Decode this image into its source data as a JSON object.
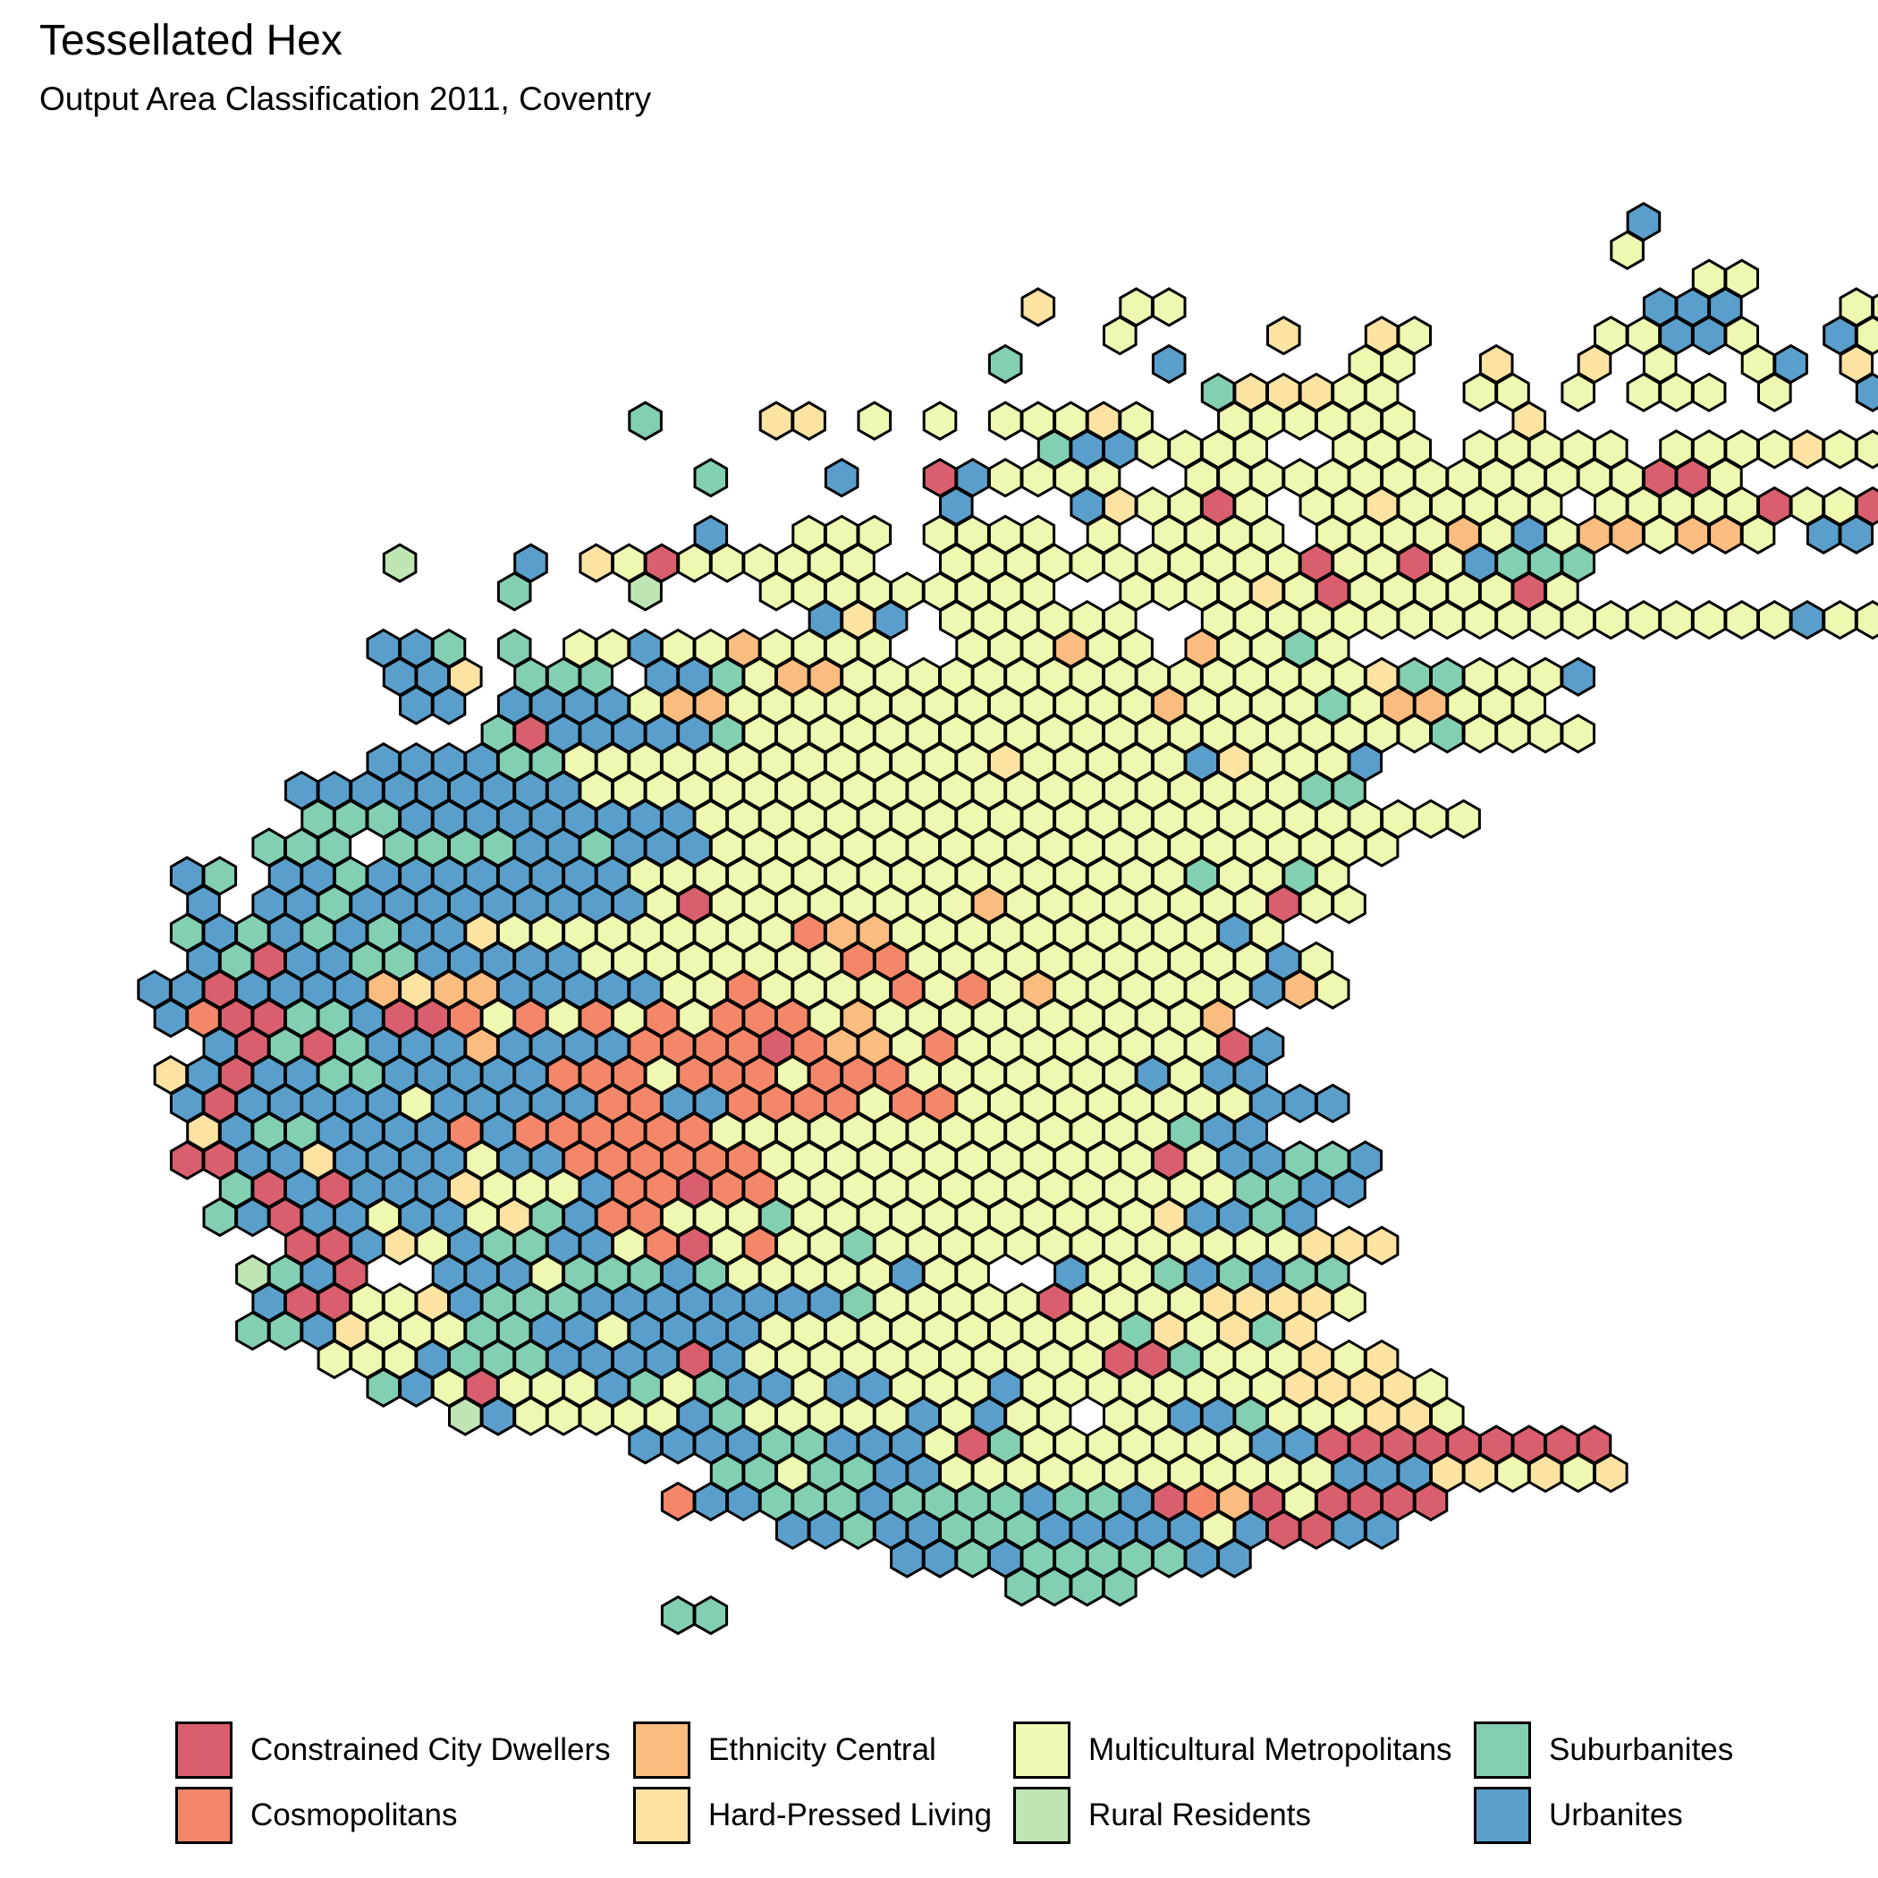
{
  "title": "Tessellated Hex",
  "subtitle": "Output Area Classification 2011, Coventry",
  "categories": [
    {
      "code": "C",
      "name": "Constrained City Dwellers",
      "color": "#d95f6e"
    },
    {
      "code": "O",
      "name": "Cosmopolitans",
      "color": "#f4876a"
    },
    {
      "code": "E",
      "name": "Ethnicity Central",
      "color": "#fbbc7f"
    },
    {
      "code": "H",
      "name": "Hard-Pressed Living",
      "color": "#fde3a2"
    },
    {
      "code": "M",
      "name": "Multicultural Metropolitans",
      "color": "#eef8b0"
    },
    {
      "code": "R",
      "name": "Rural Residents",
      "color": "#bfe5b5"
    },
    {
      "code": "S",
      "name": "Suburbanites",
      "color": "#82cfb1"
    },
    {
      "code": "U",
      "name": "Urbanites",
      "color": "#5a9fcb"
    }
  ],
  "hex_rows": [
    {
      "row": 0,
      "cells": "u",
      "start": 46
    },
    {
      "row": 1,
      "cells": "m",
      "start": 46
    },
    {
      "row": 2,
      "cells": "mm.....u",
      "start": 48
    },
    {
      "row": 3,
      "cells": "h..mm..............uuu...mmumm...h",
      "start": 28
    },
    {
      "row": 4,
      "cells": "m....h..hm.....mmuum..um",
      "start": 30
    },
    {
      "row": 5,
      "cells": "s....u.....mm..h..h.m..mu.h",
      "start": 27
    },
    {
      "row": 6,
      "cells": "shhhmm..mm.m.mmm.m..umm.h.u.m",
      "start": 33
    },
    {
      "row": 7,
      "cells": "s...hh.m.m.mmmhm..mmmmmm...h",
      "start": 16
    },
    {
      "row": 8,
      "cells": "suummmm..mmm.mmmmm.mmmmhmmmmm.h",
      "start": 28
    },
    {
      "row": 9,
      "cells": "s...u..cummmm..mmmmmmmmmmmmmmccm",
      "start": 18
    },
    {
      "row": 10,
      "cells": "u...uhmmcm.mmhmmmmm.mmmmmcmmcmmm",
      "start": 25
    },
    {
      "row": 11,
      "cells": "u..mmm.mmmm.m.mmmm.mmmmemumeemeem.uu",
      "start": 18
    },
    {
      "row": 12,
      "cells": "r...u.hmcmmmmmm..mmmmmmmmmmmcmmcmusss",
      "start": 8
    },
    {
      "row": 13,
      "cells": "s...r...mmmmmmmmm..mmmmhmcmmmmmcm",
      "start": 12
    },
    {
      "row": 14,
      "cells": "uhu.mmmmmm..mmmmmmmmmmmmmmmmmmumm",
      "start": 21
    },
    {
      "row": 15,
      "cells": "uus.s.mmummemmmm..mmmemm.emmsm",
      "start": 8
    },
    {
      "row": 16,
      "cells": "uuh.sss.uusmeemmmmmmmmmmmmmmmmhssmmmu",
      "start": 8
    },
    {
      "row": 17,
      "cells": "uu.uuuumeemmmmmmmmmmmmmemmmmsmeemmm",
      "start": 9
    },
    {
      "row": 18,
      "cells": "scuuuuusmmmmmmmmmmmmmmmmmmmmmsmmmm",
      "start": 11
    },
    {
      "row": 19,
      "cells": "uuuussmmmmmmmmmmmmmhmmmmmuhmmmu",
      "start": 8
    },
    {
      "row": 20,
      "cells": "uuuuuuuuummmmmmmmmmmmmmmmmmmmmmss",
      "start": 5
    },
    {
      "row": 21,
      "cells": "sssuuuuuuuuummmmmmmmmmmmmmmmmmmmmmmm",
      "start": 6
    },
    {
      "row": 22,
      "cells": "sss.ssssuusuuummmmmmmmmmmmmmmmmmmmm",
      "start": 4
    },
    {
      "row": 23,
      "cells": "us.uusuuuuuuuummmmmmmmmmmmmmmmmsmmsm",
      "start": 2
    },
    {
      "row": 24,
      "cells": "u.uusuuuuuuuuumcmmmmmmmmemmmmmmmmcmm",
      "start": 2
    },
    {
      "row": 25,
      "cells": "susususuuhmmmmmmmmmoeemmmmmmmmmmum",
      "start": 2
    },
    {
      "row": 26,
      "cells": "uscuussuuuuummmmmmmmoommmmmmmmmmmum",
      "start": 2
    },
    {
      "row": 27,
      "cells": "uucuuuueheeuuuuummommmmomomemmmmmmuem",
      "start": 1
    },
    {
      "row": 28,
      "cells": "uoccssuccomomomomooomemmmmmmmmmme",
      "start": 1
    },
    {
      "row": 29,
      "cells": "ucscsuuueuuuuoooocoeemommmmmmmmcu",
      "start": 3
    },
    {
      "row": 30,
      "cells": "hucuussuuuuuooomooomooommmmmmmumuu",
      "start": 1
    },
    {
      "row": 31,
      "cells": "ucuuuuumuuuuuoouuoooomoommmmmmmmmuuu",
      "start": 2
    },
    {
      "row": 32,
      "cells": "hussuuuuouoooooommmmmmmmmmmmmmsuu",
      "start": 2
    },
    {
      "row": 33,
      "cells": "ccuuhuuuumuuoooooommmmmmmmmmmmcmuussu",
      "start": 2
    },
    {
      "row": 34,
      "cells": "scucuuuhmmmuoocoommmmmmmmmmmmmmssuu",
      "start": 3
    },
    {
      "row": 35,
      "cells": "sucuumuumhsuoommmsmmmmmmmmmmmhuusu",
      "start": 3
    },
    {
      "row": 36,
      "cells": "ccuhmussuumocmommsmmmmmmmmmmmmmhhh",
      "start": 5
    },
    {
      "row": 37,
      "cells": "rsuc..uuumsssusmmmmmumm..ummsususs",
      "start": 4
    },
    {
      "row": 38,
      "cells": "uccmmhusssuuuuuuuusmmmmmcmmmmhhhhm",
      "start": 4
    },
    {
      "row": 39,
      "cells": "ssuhmmmssuumuuuummmmmmmmmmmshmhsh",
      "start": 4
    },
    {
      "row": 40,
      "cells": "mmmusssuuuucummmmmmmmmmmccsmmmhmh",
      "start": 6
    },
    {
      "row": 41,
      "cells": "sumcmmmusmsuumuummmummmmmmmmhhhhm",
      "start": 8
    },
    {
      "row": 42,
      "cells": "rummmmmusmmmmmumumm.mmuusmmmhhm",
      "start": 10
    },
    {
      "row": 43,
      "cells": "uuuussuuumcsmmmmmmmuuccccccccc",
      "start": 16
    },
    {
      "row": 44,
      "cells": "ssmssuummmmmmmmmmmmuuuhhmhmh",
      "start": 18
    },
    {
      "row": 45,
      "cells": "ouusssussssussucoecmcccc",
      "start": 17
    },
    {
      "row": 46,
      "cells": "uusuusssuuuuumuccuu",
      "start": 20
    },
    {
      "row": 47,
      "cells": "uususssssuu",
      "start": 24
    },
    {
      "row": 48,
      "cells": "ssss",
      "start": 27
    },
    {
      "row": 49,
      "cells": "ss",
      "start": 17
    }
  ]
}
